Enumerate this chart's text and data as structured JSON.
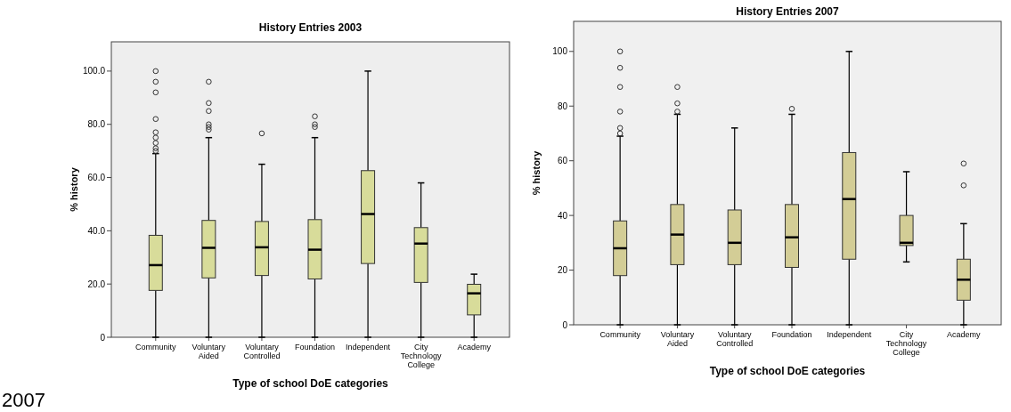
{
  "chart_data": [
    {
      "type": "box",
      "title": "History Entries 2003",
      "xlabel": "Type of school DoE categories",
      "ylabel": "% history",
      "categories": [
        "Community",
        "Voluntary Aided",
        "Voluntary Controlled",
        "Foundation",
        "Independent",
        "City Technology College",
        "Academy"
      ],
      "color": "#d8dc9a",
      "ylim": [
        0,
        111
      ],
      "yticks": [
        0,
        {
          "value": 20,
          "label": "20.0"
        },
        {
          "value": 40,
          "label": "40.0"
        },
        {
          "value": 60,
          "label": "60.0"
        },
        {
          "value": 80,
          "label": "80.0"
        },
        {
          "value": 100,
          "label": "100.0"
        }
      ],
      "grid": false,
      "marker": "circle",
      "annotations": [
        "2007"
      ],
      "boxes": [
        {
          "low": 0,
          "q1": 17.6,
          "median": 27.1,
          "q3": 38.3,
          "high": 69,
          "outliers": [
            70,
            71,
            73,
            75,
            77,
            82,
            92,
            96,
            100
          ]
        },
        {
          "low": 0,
          "q1": 22.3,
          "median": 33.6,
          "q3": 43.9,
          "high": 75,
          "outliers": [
            78,
            79,
            80,
            85,
            88,
            96
          ]
        },
        {
          "low": 0,
          "q1": 23.2,
          "median": 33.8,
          "q3": 43.5,
          "high": 65,
          "outliers": [
            76.6
          ]
        },
        {
          "low": 0,
          "q1": 21.9,
          "median": 32.9,
          "q3": 44.2,
          "high": 75,
          "outliers": [
            79,
            80,
            83
          ]
        },
        {
          "low": 0,
          "q1": 27.7,
          "median": 46.3,
          "q3": 62.6,
          "high": 100
        },
        {
          "low": 0,
          "q1": 20.6,
          "median": 35.2,
          "q3": 41.2,
          "high": 58
        },
        {
          "low": 0,
          "q1": 8.4,
          "median": 16.5,
          "q3": 19.9,
          "high": 23.7
        }
      ]
    },
    {
      "type": "box",
      "title": "History Entries 2007",
      "xlabel": "Type of school DoE categories",
      "ylabel": "% history",
      "categories": [
        "Community",
        "Voluntary Aided",
        "Voluntary Controlled",
        "Foundation",
        "Independent",
        "City Technology College",
        "Academy"
      ],
      "color": "#d3cd96",
      "ylim": [
        0,
        111
      ],
      "yticks": [
        0,
        20,
        40,
        60,
        80,
        100
      ],
      "grid": false,
      "marker": "circle",
      "boxes": [
        {
          "low": 0,
          "q1": 18,
          "median": 28,
          "q3": 38,
          "high": 69,
          "outliers": [
            70,
            72,
            78,
            87,
            94,
            100
          ]
        },
        {
          "low": 0,
          "q1": 22,
          "median": 33,
          "q3": 44,
          "high": 77,
          "outliers": [
            78,
            81,
            87
          ]
        },
        {
          "low": 0,
          "q1": 22,
          "median": 30,
          "q3": 42,
          "high": 72
        },
        {
          "low": 0,
          "q1": 21,
          "median": 32,
          "q3": 44,
          "high": 77,
          "outliers": [
            79
          ]
        },
        {
          "low": 0,
          "q1": 24,
          "median": 46,
          "q3": 63,
          "high": 100
        },
        {
          "low": 23,
          "q1": 29,
          "median": 30,
          "q3": 40,
          "high": 56
        },
        {
          "low": 0,
          "q1": 9,
          "median": 16.5,
          "q3": 24,
          "high": 37,
          "outliers": [
            51,
            59
          ]
        }
      ]
    }
  ]
}
